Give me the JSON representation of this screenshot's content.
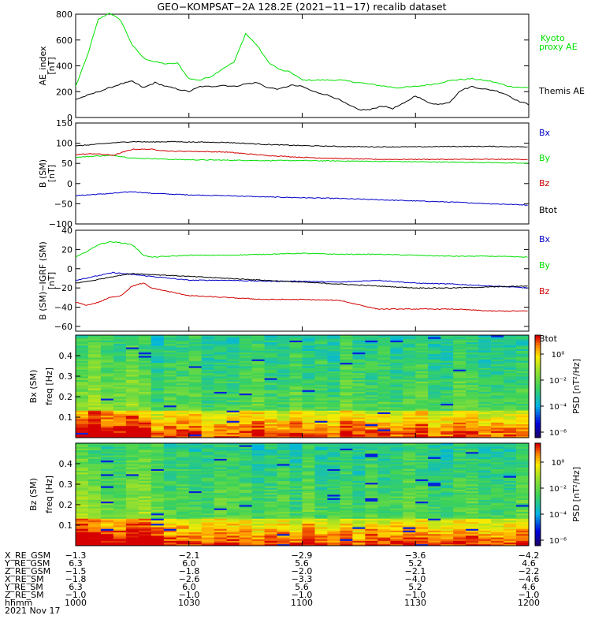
{
  "title": "GEO−KOMPSAT−2A 128.2E (2021−11−17) recalib dataset",
  "chart_data": [
    {
      "type": "line",
      "ylabel": "AE_index\n[nT]",
      "ylim": [
        0,
        800
      ],
      "yticks": [
        "0",
        "200",
        "400",
        "600",
        "800"
      ],
      "xlim": [
        0,
        120
      ],
      "series": [
        {
          "name": "Kyoto proxy AE",
          "color": "#00e000",
          "x": [
            0,
            3,
            6,
            9,
            12,
            15,
            18,
            21,
            24,
            27,
            30,
            33,
            36,
            39,
            42,
            45,
            48,
            51,
            54,
            57,
            60,
            65,
            70,
            75,
            80,
            85,
            90,
            95,
            100,
            105,
            110,
            115,
            120
          ],
          "y": [
            240,
            470,
            760,
            810,
            750,
            560,
            460,
            430,
            415,
            420,
            300,
            290,
            320,
            380,
            430,
            650,
            560,
            430,
            370,
            350,
            290,
            290,
            290,
            270,
            250,
            230,
            240,
            260,
            290,
            300,
            280,
            240,
            230
          ]
        },
        {
          "name": "Themis AE",
          "color": "#000000",
          "x": [
            0,
            3,
            6,
            9,
            12,
            15,
            18,
            21,
            24,
            27,
            30,
            33,
            36,
            39,
            42,
            45,
            48,
            51,
            54,
            57,
            60,
            63,
            66,
            69,
            72,
            75,
            78,
            81,
            84,
            87,
            90,
            93,
            96,
            99,
            102,
            105,
            108,
            111,
            114,
            117,
            120
          ],
          "y": [
            140,
            170,
            200,
            230,
            260,
            280,
            230,
            270,
            240,
            220,
            200,
            240,
            240,
            250,
            240,
            260,
            270,
            230,
            220,
            250,
            240,
            200,
            180,
            150,
            100,
            60,
            60,
            90,
            70,
            110,
            170,
            120,
            100,
            120,
            210,
            240,
            220,
            210,
            180,
            130,
            100
          ]
        }
      ]
    },
    {
      "type": "line",
      "ylabel": "B (SM)\n[nT]",
      "ylim": [
        -100,
        150
      ],
      "yticks": [
        "−100",
        "−50",
        "0",
        "50",
        "100",
        "150"
      ],
      "xlim": [
        0,
        120
      ],
      "series": [
        {
          "name": "Bx",
          "color": "#0000c8",
          "x": [
            0,
            5,
            10,
            15,
            20,
            25,
            30,
            40,
            50,
            60,
            70,
            80,
            90,
            100,
            110,
            120
          ],
          "y": [
            -30,
            -27,
            -24,
            -20,
            -24,
            -26,
            -28,
            -30,
            -33,
            -35,
            -37,
            -40,
            -43,
            -46,
            -50,
            -53
          ]
        },
        {
          "name": "By",
          "color": "#00e000",
          "x": [
            0,
            5,
            10,
            15,
            20,
            25,
            30,
            40,
            50,
            60,
            70,
            80,
            90,
            100,
            110,
            120
          ],
          "y": [
            65,
            68,
            70,
            63,
            62,
            60,
            59,
            58,
            57,
            57,
            56,
            55,
            54,
            53,
            52,
            50
          ]
        },
        {
          "name": "Bz",
          "color": "#d00000",
          "x": [
            0,
            5,
            10,
            15,
            20,
            25,
            30,
            40,
            50,
            60,
            70,
            80,
            90,
            100,
            110,
            120
          ],
          "y": [
            72,
            74,
            70,
            85,
            85,
            80,
            80,
            78,
            70,
            65,
            62,
            60,
            60,
            60,
            60,
            60
          ]
        },
        {
          "name": "Btot",
          "color": "#000000",
          "x": [
            0,
            5,
            10,
            15,
            20,
            25,
            30,
            40,
            50,
            60,
            70,
            80,
            90,
            100,
            110,
            120
          ],
          "y": [
            93,
            97,
            101,
            104,
            103,
            104,
            103,
            102,
            97,
            94,
            92,
            91,
            91,
            92,
            92,
            91
          ]
        }
      ]
    },
    {
      "type": "line",
      "ylabel": "B (SM)−IGRF (SM)\n[nT]",
      "ylim": [
        -65,
        40
      ],
      "yticks": [
        "−60",
        "−40",
        "−20",
        "0",
        "20",
        "40"
      ],
      "xlim": [
        0,
        120
      ],
      "series": [
        {
          "name": "Bx",
          "color": "#0000c8",
          "x": [
            0,
            5,
            10,
            15,
            20,
            25,
            30,
            40,
            50,
            60,
            70,
            80,
            90,
            100,
            110,
            120
          ],
          "y": [
            -12,
            -8,
            -4,
            -6,
            -8,
            -10,
            -12,
            -12,
            -13,
            -13,
            -14,
            -12,
            -15,
            -16,
            -18,
            -20
          ]
        },
        {
          "name": "By",
          "color": "#00e000",
          "x": [
            0,
            3,
            6,
            9,
            12,
            15,
            18,
            20,
            25,
            30,
            40,
            50,
            60,
            70,
            80,
            90,
            100,
            110,
            120
          ],
          "y": [
            12,
            18,
            25,
            28,
            27,
            25,
            14,
            12,
            13,
            14,
            14,
            15,
            16,
            15,
            15,
            14,
            13,
            13,
            12
          ]
        },
        {
          "name": "Bz",
          "color": "#d00000",
          "x": [
            0,
            3,
            6,
            9,
            12,
            15,
            18,
            20,
            25,
            30,
            40,
            50,
            60,
            70,
            80,
            90,
            100,
            110,
            120
          ],
          "y": [
            -35,
            -38,
            -35,
            -30,
            -28,
            -18,
            -15,
            -20,
            -24,
            -28,
            -30,
            -32,
            -32,
            -33,
            -42,
            -42,
            -42,
            -44,
            -44
          ]
        },
        {
          "name": "Btot",
          "color": "#000000",
          "x": [
            0,
            5,
            10,
            15,
            20,
            25,
            30,
            40,
            50,
            60,
            70,
            80,
            90,
            100,
            110,
            120
          ],
          "y": [
            -15,
            -12,
            -8,
            -5,
            -6,
            -7,
            -8,
            -10,
            -12,
            -14,
            -16,
            -18,
            -20,
            -20,
            -19,
            -18
          ]
        }
      ]
    },
    {
      "type": "heatmap",
      "ylabel": "Bx (SM)\nfreq [Hz]",
      "ylim": [
        0,
        0.5
      ],
      "yticks": [
        "0.1",
        "0.2",
        "0.3",
        "0.4"
      ],
      "colorbar": {
        "label": "PSD [nT²/Hz]",
        "ticks": [
          "10⁰",
          "10⁻²",
          "10⁻⁴",
          "10⁻⁶"
        ]
      }
    },
    {
      "type": "heatmap",
      "ylabel": "Bz (SM)\nfreq [Hz]",
      "ylim": [
        0,
        0.5
      ],
      "yticks": [
        "0.1",
        "0.2",
        "0.3",
        "0.4"
      ],
      "colorbar": {
        "label": "PSD [nT²/Hz]",
        "ticks": [
          "10⁰",
          "10⁻²",
          "10⁻⁴",
          "10⁻⁶"
        ]
      }
    }
  ],
  "ephemeris": {
    "rows": [
      {
        "label": "X_RE_GSM",
        "values": [
          "−1.3",
          "−2.1",
          "−2.9",
          "−3.6",
          "−4.2"
        ]
      },
      {
        "label": "Y_RE_GSM",
        "values": [
          "6.3",
          "6.0",
          "5.6",
          "5.2",
          "4.6"
        ]
      },
      {
        "label": "Z_RE_GSM",
        "values": [
          "−1.5",
          "−1.8",
          "−2.0",
          "−2.1",
          "−2.2"
        ]
      },
      {
        "label": "X_RE_SM",
        "values": [
          "−1.8",
          "−2.6",
          "−3.3",
          "−4.0",
          "−4.6"
        ]
      },
      {
        "label": "Y_RE_SM",
        "values": [
          "6.3",
          "6.0",
          "5.6",
          "5.2",
          "4.6"
        ]
      },
      {
        "label": "Z_RE_SM",
        "values": [
          "−1.0",
          "−1.0",
          "−1.0",
          "−1.0",
          "−1.0"
        ]
      },
      {
        "label": "hhmm",
        "values": [
          "1000",
          "1030",
          "1100",
          "1130",
          "1200"
        ]
      }
    ],
    "date": "2021 Nov 17"
  },
  "legend_labels": {
    "ae": [
      "Kyoto\nproxy AE",
      "Themis AE"
    ],
    "b": [
      "Bx",
      "By",
      "Bz",
      "Btot"
    ]
  },
  "colors": {
    "bx": "#0000c8",
    "by": "#00e000",
    "bz": "#d00000",
    "btot": "#000000",
    "kyoto": "#00e000"
  }
}
